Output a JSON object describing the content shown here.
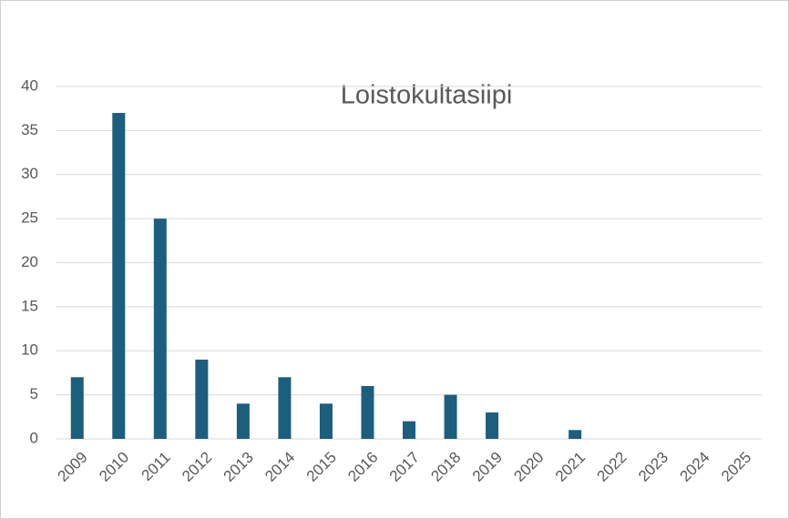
{
  "chart_data": {
    "type": "bar",
    "title": "Loistokultasiipi",
    "categories": [
      "2009",
      "2010",
      "2011",
      "2012",
      "2013",
      "2014",
      "2015",
      "2016",
      "2017",
      "2018",
      "2019",
      "2020",
      "2021",
      "2022",
      "2023",
      "2024",
      "2025"
    ],
    "values": [
      7,
      37,
      25,
      9,
      4,
      7,
      4,
      6,
      2,
      5,
      3,
      0,
      1,
      0,
      0,
      0,
      0
    ],
    "color": "#1b5e7d",
    "ylim": [
      0,
      40
    ],
    "yticks": [
      0,
      5,
      10,
      15,
      20,
      25,
      30,
      35,
      40
    ],
    "grid": true
  }
}
